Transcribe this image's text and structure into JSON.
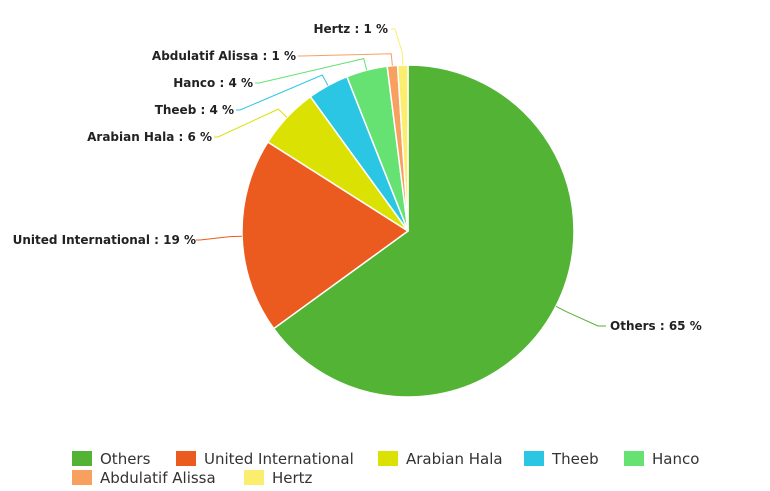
{
  "chart_data": {
    "type": "pie",
    "title": "",
    "unit": "%",
    "slices": [
      {
        "name": "Others",
        "value": 65,
        "label": "Others : 65 %",
        "color": "#52b334"
      },
      {
        "name": "United International",
        "value": 19,
        "label": "United International : 19 %",
        "color": "#eb5a1f"
      },
      {
        "name": "Arabian Hala",
        "value": 6,
        "label": "Arabian Hala : 6 %",
        "color": "#dce104"
      },
      {
        "name": "Theeb",
        "value": 4,
        "label": "Theeb : 4 %",
        "color": "#2ac6e3"
      },
      {
        "name": "Hanco",
        "value": 4,
        "label": "Hanco : 4 %",
        "color": "#65e272"
      },
      {
        "name": "Abdulatif Alissa",
        "value": 1,
        "label": "Abdulatif Alissa : 1 %",
        "color": "#f7a05f"
      },
      {
        "name": "Hertz",
        "value": 1,
        "label": "Hertz : 1 %",
        "color": "#fbee6f"
      }
    ],
    "legend_position": "bottom"
  }
}
